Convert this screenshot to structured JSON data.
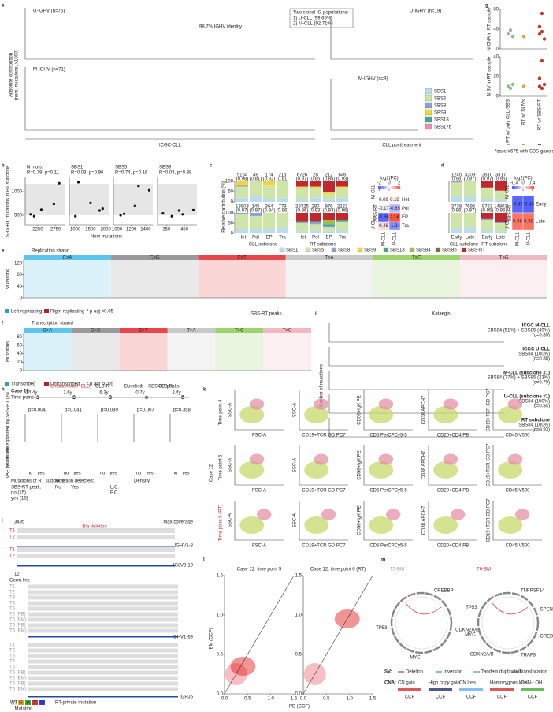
{
  "a": {
    "letter": "a",
    "u_label": "U-IGHV (n=76)",
    "m_label": "M-IGHV (n=71)",
    "u_post_label": "U-IGHV (n=19)",
    "m_post_label": "M-IGHV (n=8)",
    "identity_note": "98.7% IGHV identity",
    "clonal_note": [
      "Two clonal IG populations:",
      "1) U-CLL (99.65%)",
      "2) M-CLL (92.71%)"
    ],
    "y_label": [
      "Absolute contribution",
      "(num. mutations, x1000)"
    ],
    "cohort_left": "ICGC-CLL",
    "cohort_right": "CLL posttreatment",
    "legend": [
      {
        "name": "SBS1",
        "color": "#b9dcef"
      },
      {
        "name": "SBS5",
        "color": "#cde6a8"
      },
      {
        "name": "SBS8",
        "color": "#8e9fd4"
      },
      {
        "name": "SBS9",
        "color": "#f2d635"
      },
      {
        "name": "SBS18",
        "color": "#41a898"
      },
      {
        "name": "SBS17b",
        "color": "#e892ad"
      }
    ]
  },
  "b": {
    "letter": "b",
    "y_label": "SBS-RT mutations in RT subclone",
    "x_label": "Num mutations",
    "ylim": [
      300,
      1300
    ],
    "yticks": [
      500,
      1000
    ],
    "subplots": [
      {
        "title": "N muts.",
        "stats": "R=0.79, p=0.11",
        "x": [
          2050,
          2150,
          2350,
          2700,
          2850
        ],
        "y": [
          520,
          480,
          620,
          740,
          1180
        ],
        "xlim": [
          1900,
          3000
        ],
        "xticks": [
          2250,
          2750
        ]
      },
      {
        "title": "SBS1",
        "stats": "R=0.03, p=0.96",
        "x": [
          1000,
          1100,
          1500,
          1800,
          1900
        ],
        "y": [
          480,
          1200,
          760,
          600,
          640
        ],
        "xlim": [
          800,
          2100
        ],
        "xticks": [
          1000,
          1500,
          2000
        ]
      },
      {
        "title": "SBS5",
        "stats": "R=0.74, p=0.16",
        "x": [
          1050,
          1100,
          1250,
          1300,
          1450
        ],
        "y": [
          500,
          530,
          700,
          1120,
          1030
        ],
        "xlim": [
          950,
          1500
        ],
        "xticks": [
          1000,
          1200,
          1400
        ]
      },
      {
        "title": "SBS8",
        "stats": "R=0.03, p=0.38",
        "x": [
          330,
          380,
          420,
          440,
          500
        ],
        "y": [
          540,
          480,
          600,
          520,
          610
        ],
        "xlim": [
          300,
          520
        ],
        "xticks": [
          350,
          450
        ]
      }
    ]
  },
  "c": {
    "letter": "c",
    "y_label": "Relative contribution (%)",
    "ylim": [
      0,
      100
    ],
    "yticks": [
      0,
      50,
      100
    ],
    "bar_labels": [
      "Het",
      "Pol",
      "EP",
      "Tra",
      "Het",
      "Pol",
      "EP",
      "Tra"
    ],
    "group_labels": [
      "CLL subclone",
      "RT subclone"
    ],
    "m_counts": [
      "5154",
      "49",
      "174",
      "216",
      "6726",
      "28",
      "212",
      "646"
    ],
    "m_cos": [
      "(0.98)",
      "(0.81)",
      "(0.82)",
      "(0.81)",
      "(0.97)",
      "(0.85)",
      "(0.85)",
      "(0.93)"
    ],
    "u_counts": [
      "13903",
      "145",
      "364",
      "779",
      "28325",
      "290",
      "976",
      "2223"
    ],
    "u_cos": [
      "(0.97)",
      "(0.97)",
      "(0.94)",
      "(0.96)",
      "(0.96)",
      "(0.93)",
      "(0.93)",
      "(0.96)"
    ],
    "m_bars": [
      [
        20,
        55,
        5,
        20,
        0,
        0,
        0,
        0
      ],
      [
        30,
        70,
        0,
        0,
        0,
        0,
        0,
        0
      ],
      [
        15,
        65,
        0,
        20,
        0,
        0,
        0,
        0
      ],
      [
        20,
        80,
        0,
        0,
        0,
        0,
        0,
        0
      ],
      [
        15,
        50,
        5,
        5,
        0,
        0,
        0,
        25
      ],
      [
        20,
        45,
        0,
        10,
        0,
        0,
        0,
        25
      ],
      [
        10,
        30,
        0,
        10,
        0,
        0,
        0,
        50
      ],
      [
        20,
        50,
        0,
        5,
        0,
        0,
        0,
        25
      ]
    ],
    "u_bars": [
      [
        20,
        75,
        5,
        0,
        0,
        0,
        0,
        0
      ],
      [
        25,
        60,
        15,
        0,
        0,
        0,
        0,
        0
      ],
      [
        20,
        80,
        0,
        0,
        0,
        0,
        0,
        0
      ],
      [
        30,
        70,
        0,
        0,
        0,
        0,
        0,
        0
      ],
      [
        10,
        40,
        5,
        0,
        5,
        0,
        0,
        40
      ],
      [
        15,
        30,
        10,
        0,
        5,
        0,
        0,
        40
      ],
      [
        10,
        20,
        5,
        0,
        10,
        20,
        0,
        35
      ],
      [
        15,
        40,
        5,
        0,
        5,
        0,
        0,
        35
      ]
    ],
    "row_labels": [
      "M-CLL",
      "U-CLL"
    ],
    "heat_title": "log2(FC)",
    "heat_group": "SBS-RT",
    "heat_rows": [
      "Het",
      "Pol",
      "EP",
      "Tra"
    ],
    "heat_cols": [
      "M-CLL",
      "U-CLL"
    ],
    "heat_values": [
      [
        0.09,
        0.18
      ],
      [
        -0.17,
        -0.85
      ],
      [
        -1.86,
        2.14
      ],
      [
        0.46,
        -1.34
      ]
    ],
    "heat_lim": [
      -2.2,
      2.2
    ],
    "heat_ticks": [
      -2,
      0,
      2
    ],
    "legend": [
      {
        "name": "SBS1",
        "color": "#b9dcef"
      },
      {
        "name": "SBS5",
        "color": "#cde6a8"
      },
      {
        "name": "SBS8",
        "color": "#8e9fd4"
      },
      {
        "name": "SBS9",
        "color": "#f2d635"
      },
      {
        "name": "SBS18",
        "color": "#41a898"
      },
      {
        "name": "SBS84",
        "color": "#9ac04a"
      },
      {
        "name": "SBS85",
        "color": "#8a6a3a"
      },
      {
        "name": "SBS-RT",
        "color": "#c0282d"
      }
    ]
  },
  "d": {
    "letter": "d",
    "bar_labels": [
      "Early",
      "Late",
      "Early",
      "Late"
    ],
    "group_labels": [
      "CLL subclone",
      "RT subclone"
    ],
    "m_counts": [
      "1245",
      "3209",
      "2610",
      "3317"
    ],
    "m_cos": [
      "(0.96)",
      "(0.97)",
      "(0.97)",
      "(0.96)"
    ],
    "u_counts": [
      "3738",
      "7695",
      "9763",
      "14803"
    ],
    "u_cos": [
      "(0.96)",
      "(0.97)",
      "(0.95)",
      "(0.95)"
    ],
    "m_bars": [
      [
        25,
        70,
        5,
        0,
        0,
        0,
        0,
        0
      ],
      [
        25,
        75,
        0,
        0,
        0,
        0,
        0,
        0
      ],
      [
        15,
        55,
        0,
        0,
        0,
        0,
        0,
        30
      ],
      [
        10,
        45,
        0,
        0,
        0,
        0,
        0,
        45
      ]
    ],
    "u_bars": [
      [
        25,
        75,
        0,
        0,
        0,
        0,
        0,
        0
      ],
      [
        30,
        70,
        0,
        0,
        0,
        0,
        0,
        0
      ],
      [
        15,
        50,
        5,
        0,
        0,
        0,
        0,
        30
      ],
      [
        10,
        40,
        5,
        0,
        0,
        0,
        0,
        45
      ]
    ],
    "row_labels": [
      "M-CLL",
      "U-CLL"
    ],
    "heat_title": "log2(FC)",
    "heat_group": "SBS-RT",
    "heat_rows": [
      "Early",
      "Late"
    ],
    "heat_cols": [
      "M-CLL",
      "U-CLL"
    ],
    "heat_values": [
      [
        -0.42,
        -0.43
      ],
      [
        0.38,
        0.39
      ]
    ],
    "heat_lim": [
      -0.5,
      0.5
    ],
    "heat_ticks": [
      -0.4,
      0,
      0.4
    ]
  },
  "e": {
    "letter": "e",
    "title": "Replication strand",
    "y_label": "Mutations",
    "yticks": [
      0,
      40,
      80,
      120
    ],
    "ylim": [
      0,
      130
    ],
    "classes": [
      "C>A",
      "C>G",
      "C>T",
      "T>A",
      "T>C",
      "T>G"
    ],
    "class_colors": [
      "#5bc5ee",
      "#9a9a9a",
      "#e8464a",
      "#c8c8c8",
      "#9cd36a",
      "#f0b8c0"
    ],
    "legend": [
      {
        "name": "Left-replicating",
        "color": "#2f9bd6"
      },
      {
        "name": "Right-replicating",
        "color": "#b7202a"
      }
    ],
    "p_note": "* p adj <0.05",
    "peak_note": "SBS-RT peaks"
  },
  "f": {
    "letter": "f",
    "title": "Transcription strand",
    "y_label": "Mutations",
    "yticks": [
      0,
      20,
      40,
      60,
      80
    ],
    "ylim": [
      0,
      90
    ],
    "classes": [
      "C>A",
      "C>G",
      "C>T",
      "T>A",
      "T>C",
      "T>G"
    ],
    "class_colors": [
      "#5bc5ee",
      "#9a9a9a",
      "#e8464a",
      "#c8c8c8",
      "#9cd36a",
      "#f0b8c0"
    ],
    "legend": [
      {
        "name": "Transcribed",
        "color": "#2f9bd6"
      },
      {
        "name": "Untranscribed",
        "color": "#b7202a"
      }
    ],
    "p_note": "* p adj <0.05",
    "peak_note": "SBS-RT peaks"
  },
  "g": {
    "letter": "g",
    "cna_label": "N CNA in RT sample",
    "sv_label": "N SV in RT sample",
    "categories": [
      "RT w/ only CLL-SBS",
      "RT w/ DUVs",
      "RT w/ SBS-RT"
    ],
    "colors": [
      "#8dbf8b",
      "#f0a030",
      "#c0392b"
    ],
    "cna": {
      "ylim": [
        0,
        80
      ],
      "yticks": [
        0,
        40,
        80
      ],
      "values": [
        [
          30,
          38,
          25
        ],
        [
          25
        ],
        [
          45,
          72,
          20,
          30,
          35
        ]
      ]
    },
    "sv": {
      "ylim": [
        0,
        40
      ],
      "yticks": [
        0,
        20,
        40
      ],
      "values": [
        [
          10,
          8,
          12
        ],
        [
          10
        ],
        [
          18,
          36,
          12,
          10,
          8
        ]
      ]
    },
    "note": "*case #675 with SBS-ganciclovir"
  },
  "h": {
    "letter": "h",
    "case": "Case 19",
    "time_point": "Time point:",
    "times": [
      "1",
      "2",
      "3",
      "4",
      "5"
    ],
    "intervals": [
      "14.4y",
      "1.6y",
      "6.3y",
      "0.7y",
      "2.4y"
    ],
    "treatments": [
      "Chlorambucil (CLB)",
      "CLB-R",
      "Duvelisib",
      "CLB-R"
    ],
    "y_top": "Mutations explained by SBS-RT (%)",
    "y_bottom": "VAF (% of DNA)",
    "pvals": [
      "p=0.004",
      "p=0.041",
      "p=0.089",
      "p=0.007",
      "p=0.358"
    ],
    "ticks": [
      "no",
      "yes"
    ],
    "legend": [
      "Mutations of RT subclone",
      "SBS-RT peak:",
      "no (15)",
      "yes (18)",
      "Mutation detected:",
      "No",
      "Yes",
      "L.C.",
      "P.C.",
      "Density"
    ]
  },
  "i": {
    "letter": "i",
    "title": "Kataegis",
    "y_label": "Number of mutations",
    "rows": [
      [
        "ICGC M-CLL",
        "SBS84 (51%) + SBS85 (49%)",
        "(c=0.85)"
      ],
      [
        "ICGC U-CLL",
        "SBS84 (100%)",
        "(c=0.88)"
      ],
      [
        "M-CLL (subclone #1)",
        "SBS84 (77%) + SBS85 (23%)",
        "(c=0.70)"
      ],
      [
        "U-CLL (subclone #1)",
        "SBS84 (100%)",
        "(c=0.84)"
      ],
      [
        "RT subclone",
        "SBS84 (100%)",
        "(c=0.93)"
      ]
    ]
  },
  "j": {
    "letter": "j",
    "case_a": "3495",
    "case_b": "12",
    "coverage": "Max coverage",
    "germ": "Germ line",
    "region_note": "Big deletion",
    "tracks_a": [
      "T1",
      "T2",
      "T1",
      "T2"
    ],
    "genes_a": [
      "IGHV1-8",
      "IGLV3-19"
    ],
    "tracks_b": [
      "T1",
      "T2",
      "T3",
      "T4",
      "T5",
      "T5 (PB)",
      "T5 (BM)",
      "T6 (PB)",
      "T6 (BM)"
    ],
    "tracks_c": [
      "T1",
      "T2",
      "T3",
      "T4",
      "T5",
      "T5 (PB)",
      "T5 (BM)",
      "T6 (PB)",
      "T6 (BM)"
    ],
    "genes_b": [
      "IGHV1-69",
      "IGHJ6"
    ],
    "legend": [
      "WT",
      "G",
      "A",
      "T",
      "C",
      "RT-private mutation"
    ],
    "legend_title": "Mutation"
  },
  "k": {
    "letter": "k",
    "case": "Case 12",
    "rows": [
      "Time point 4",
      "Time point 5",
      "Time point 6 (RT)"
    ],
    "x_labels": [
      "FSC-A",
      "CD19+TCR GD PC7",
      "CD5 PerCPCy5-5",
      "CD20+CD4 PB",
      "CD45 V500"
    ],
    "y_labels": [
      "SSC-A",
      "SSC-A",
      "CD56+IgK PE",
      "CD38 APCH7",
      "CD19+TCR GD PC7"
    ]
  },
  "l": {
    "letter": "l",
    "titles": [
      "Case 12: time point 5",
      "Case 12: time point 6 (RT)"
    ],
    "x_label": "PB (CCF)",
    "y_label": "BM (CCF)",
    "lim": [
      0,
      1.5
    ],
    "ticks": [
      {
        "value": 0,
        "label": "0.0"
      },
      {
        "value": 0.5,
        "label": "0.5"
      },
      {
        "value": 1,
        "label": "1.0"
      },
      {
        "value": 1.5,
        "label": "1.5"
      }
    ]
  },
  "m": {
    "letter": "m",
    "titles": [
      "T5-BM",
      "T6-BM"
    ],
    "genes_a": [
      "CREBBP",
      "CDKN2A/B",
      "MYC",
      "TP53"
    ],
    "genes_b": [
      "TNFRSF14",
      "SPEN",
      "CREBBP",
      "TRAF3",
      "CDKN2A/B",
      "MYC",
      "TP53"
    ],
    "sv_title": "SV:",
    "sv_types": [
      {
        "name": "Deletion",
        "color": "#d33"
      },
      {
        "name": "Inversion",
        "color": "#3a3"
      },
      {
        "name": "Tandem duplication",
        "color": "#58c"
      },
      {
        "name": "Translocation",
        "color": "#555"
      }
    ],
    "cna_title": "CNA:",
    "cna_types": [
      {
        "name": "CN gain",
        "color": "#c33"
      },
      {
        "name": "High copy gain",
        "color": "#236"
      },
      {
        "name": "CN loss",
        "color": "#6af"
      },
      {
        "name": "Homozygous loss",
        "color": "#c33"
      },
      {
        "name": "CNN-LOH",
        "color": "#4a3"
      }
    ],
    "ccf": "CCF"
  }
}
